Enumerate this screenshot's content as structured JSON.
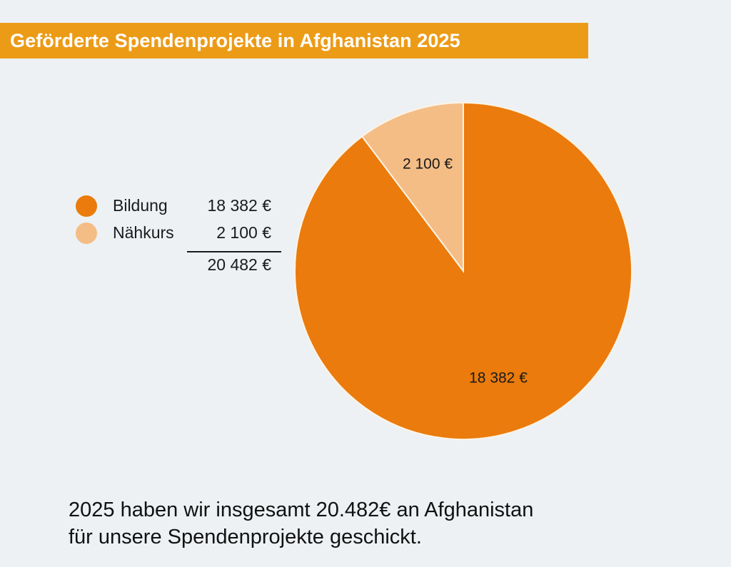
{
  "title": "Geförderte Spendenprojekte in Afghanistan 2025",
  "colors": {
    "title_bg": "#ec9b17",
    "bildung": "#ea7b0c",
    "naehkurs": "#f4bd86",
    "background": "#edf1f4"
  },
  "legend": {
    "items": [
      {
        "label": "Bildung",
        "value": "18 382 €"
      },
      {
        "label": "Nähkurs",
        "value": "2 100 €"
      }
    ],
    "total": "20 482 €"
  },
  "chart_data": {
    "type": "pie",
    "title": "Geförderte Spendenprojekte in Afghanistan 2025",
    "slices": [
      {
        "name": "Bildung",
        "value": 18382,
        "label": "18 382 €",
        "color": "#ea7b0c"
      },
      {
        "name": "Nähkurs",
        "value": 2100,
        "label": "2 100 €",
        "color": "#f4bd86"
      }
    ],
    "total": 20482,
    "unit": "€",
    "legend_position": "left"
  },
  "footer": {
    "line1": "2025 haben wir insgesamt 20.482€ an Afghanistan",
    "line2": "für unsere Spendenprojekte geschickt."
  }
}
